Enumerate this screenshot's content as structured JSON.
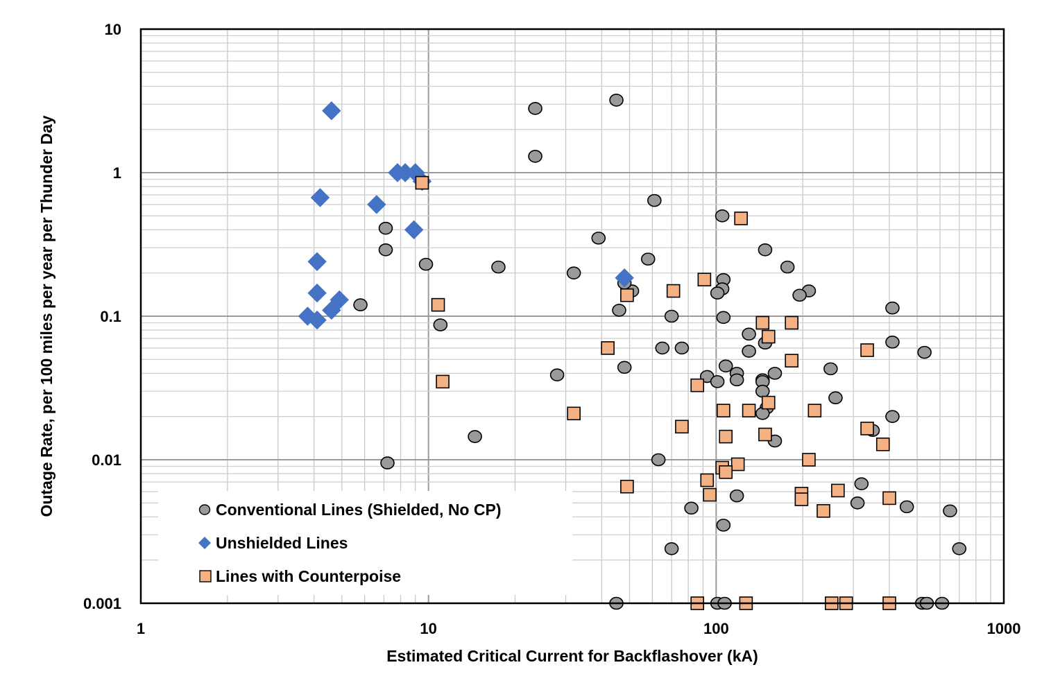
{
  "chart_data": {
    "type": "scatter",
    "title": "",
    "xlabel": "Estimated Critical Current for Backflashover (kA)",
    "ylabel": "Outage Rate, per 100 miles per year per Thunder Day",
    "xscale": "log",
    "yscale": "log",
    "xlim": [
      1,
      1000
    ],
    "ylim": [
      0.001,
      10
    ],
    "x_ticks": [
      {
        "value": 1,
        "label": "1"
      },
      {
        "value": 10,
        "label": "10"
      },
      {
        "value": 100,
        "label": "100"
      },
      {
        "value": 1000,
        "label": "1000"
      }
    ],
    "y_ticks": [
      {
        "value": 10,
        "label": "10"
      },
      {
        "value": 1,
        "label": "1"
      },
      {
        "value": 0.1,
        "label": "0.1"
      },
      {
        "value": 0.01,
        "label": "0.01"
      },
      {
        "value": 0.001,
        "label": "0.001"
      }
    ],
    "grid": "major and minor",
    "legend_position": "bottom-left",
    "series": [
      {
        "name": "Conventional Lines (Shielded, No CP)",
        "marker": "circle",
        "color": "#9a9a9a",
        "points": [
          [
            23.5,
            2.8
          ],
          [
            45,
            3.2
          ],
          [
            23.5,
            1.3
          ],
          [
            7.1,
            0.41
          ],
          [
            7.1,
            0.29
          ],
          [
            9.8,
            0.23
          ],
          [
            5.8,
            0.12
          ],
          [
            11,
            0.087
          ],
          [
            17.5,
            0.22
          ],
          [
            32,
            0.2
          ],
          [
            39,
            0.35
          ],
          [
            61,
            0.64
          ],
          [
            58,
            0.25
          ],
          [
            105,
            0.5
          ],
          [
            148,
            0.29
          ],
          [
            177,
            0.22
          ],
          [
            106,
            0.18
          ],
          [
            210,
            0.15
          ],
          [
            195,
            0.14
          ],
          [
            105,
            0.155
          ],
          [
            101,
            0.145
          ],
          [
            106,
            0.098
          ],
          [
            51,
            0.15
          ],
          [
            48,
            0.17
          ],
          [
            46,
            0.11
          ],
          [
            70,
            0.1
          ],
          [
            65,
            0.06
          ],
          [
            76,
            0.06
          ],
          [
            130,
            0.075
          ],
          [
            148,
            0.065
          ],
          [
            130,
            0.057
          ],
          [
            108,
            0.045
          ],
          [
            48,
            0.044
          ],
          [
            28,
            0.039
          ],
          [
            93,
            0.038
          ],
          [
            101,
            0.035
          ],
          [
            118,
            0.04
          ],
          [
            118,
            0.036
          ],
          [
            145,
            0.036
          ],
          [
            160,
            0.04
          ],
          [
            145,
            0.035
          ],
          [
            145,
            0.03
          ],
          [
            150,
            0.023
          ],
          [
            145,
            0.021
          ],
          [
            160,
            0.0135
          ],
          [
            250,
            0.043
          ],
          [
            260,
            0.027
          ],
          [
            410,
            0.114
          ],
          [
            410,
            0.066
          ],
          [
            530,
            0.056
          ],
          [
            410,
            0.02
          ],
          [
            350,
            0.016
          ],
          [
            7.2,
            0.0095
          ],
          [
            14.5,
            0.0145
          ],
          [
            63,
            0.01
          ],
          [
            82,
            0.0046
          ],
          [
            106,
            0.0035
          ],
          [
            118,
            0.0056
          ],
          [
            320,
            0.0068
          ],
          [
            310,
            0.005
          ],
          [
            460,
            0.0047
          ],
          [
            650,
            0.0044
          ],
          [
            700,
            0.0024
          ],
          [
            70,
            0.0024
          ],
          [
            45,
            0.001
          ],
          [
            101,
            0.001
          ],
          [
            107,
            0.001
          ],
          [
            520,
            0.001
          ],
          [
            540,
            0.001
          ],
          [
            610,
            0.001
          ]
        ]
      },
      {
        "name": "Unshielded Lines",
        "marker": "diamond",
        "color": "#4472c4",
        "points": [
          [
            4.6,
            2.7
          ],
          [
            7.8,
            1.0
          ],
          [
            8.3,
            1.0
          ],
          [
            9,
            1.0
          ],
          [
            9.5,
            0.87
          ],
          [
            4.2,
            0.67
          ],
          [
            6.6,
            0.6
          ],
          [
            8.9,
            0.4
          ],
          [
            4.1,
            0.24
          ],
          [
            4.1,
            0.145
          ],
          [
            4.9,
            0.13
          ],
          [
            4.6,
            0.11
          ],
          [
            3.8,
            0.1
          ],
          [
            4.1,
            0.094
          ],
          [
            48,
            0.185
          ]
        ]
      },
      {
        "name": "Lines with Counterpoise",
        "marker": "square",
        "color": "#f4b183",
        "points": [
          [
            9.5,
            0.85
          ],
          [
            10.8,
            0.12
          ],
          [
            11.2,
            0.035
          ],
          [
            122,
            0.48
          ],
          [
            91,
            0.18
          ],
          [
            71,
            0.15
          ],
          [
            49,
            0.14
          ],
          [
            42,
            0.06
          ],
          [
            145,
            0.09
          ],
          [
            183,
            0.09
          ],
          [
            152,
            0.072
          ],
          [
            183,
            0.049
          ],
          [
            335,
            0.058
          ],
          [
            86,
            0.033
          ],
          [
            32,
            0.021
          ],
          [
            76,
            0.017
          ],
          [
            106,
            0.022
          ],
          [
            130,
            0.022
          ],
          [
            152,
            0.025
          ],
          [
            220,
            0.022
          ],
          [
            148,
            0.015
          ],
          [
            108,
            0.0145
          ],
          [
            335,
            0.0165
          ],
          [
            380,
            0.0128
          ],
          [
            210,
            0.01
          ],
          [
            119,
            0.0093
          ],
          [
            105,
            0.0088
          ],
          [
            108,
            0.0082
          ],
          [
            93,
            0.0072
          ],
          [
            49,
            0.0065
          ],
          [
            95,
            0.0057
          ],
          [
            198,
            0.0058
          ],
          [
            198,
            0.0053
          ],
          [
            265,
            0.0061
          ],
          [
            400,
            0.0054
          ],
          [
            236,
            0.0044
          ],
          [
            86,
            0.001
          ],
          [
            127,
            0.001
          ],
          [
            252,
            0.001
          ],
          [
            283,
            0.001
          ],
          [
            400,
            0.001
          ]
        ]
      }
    ]
  }
}
